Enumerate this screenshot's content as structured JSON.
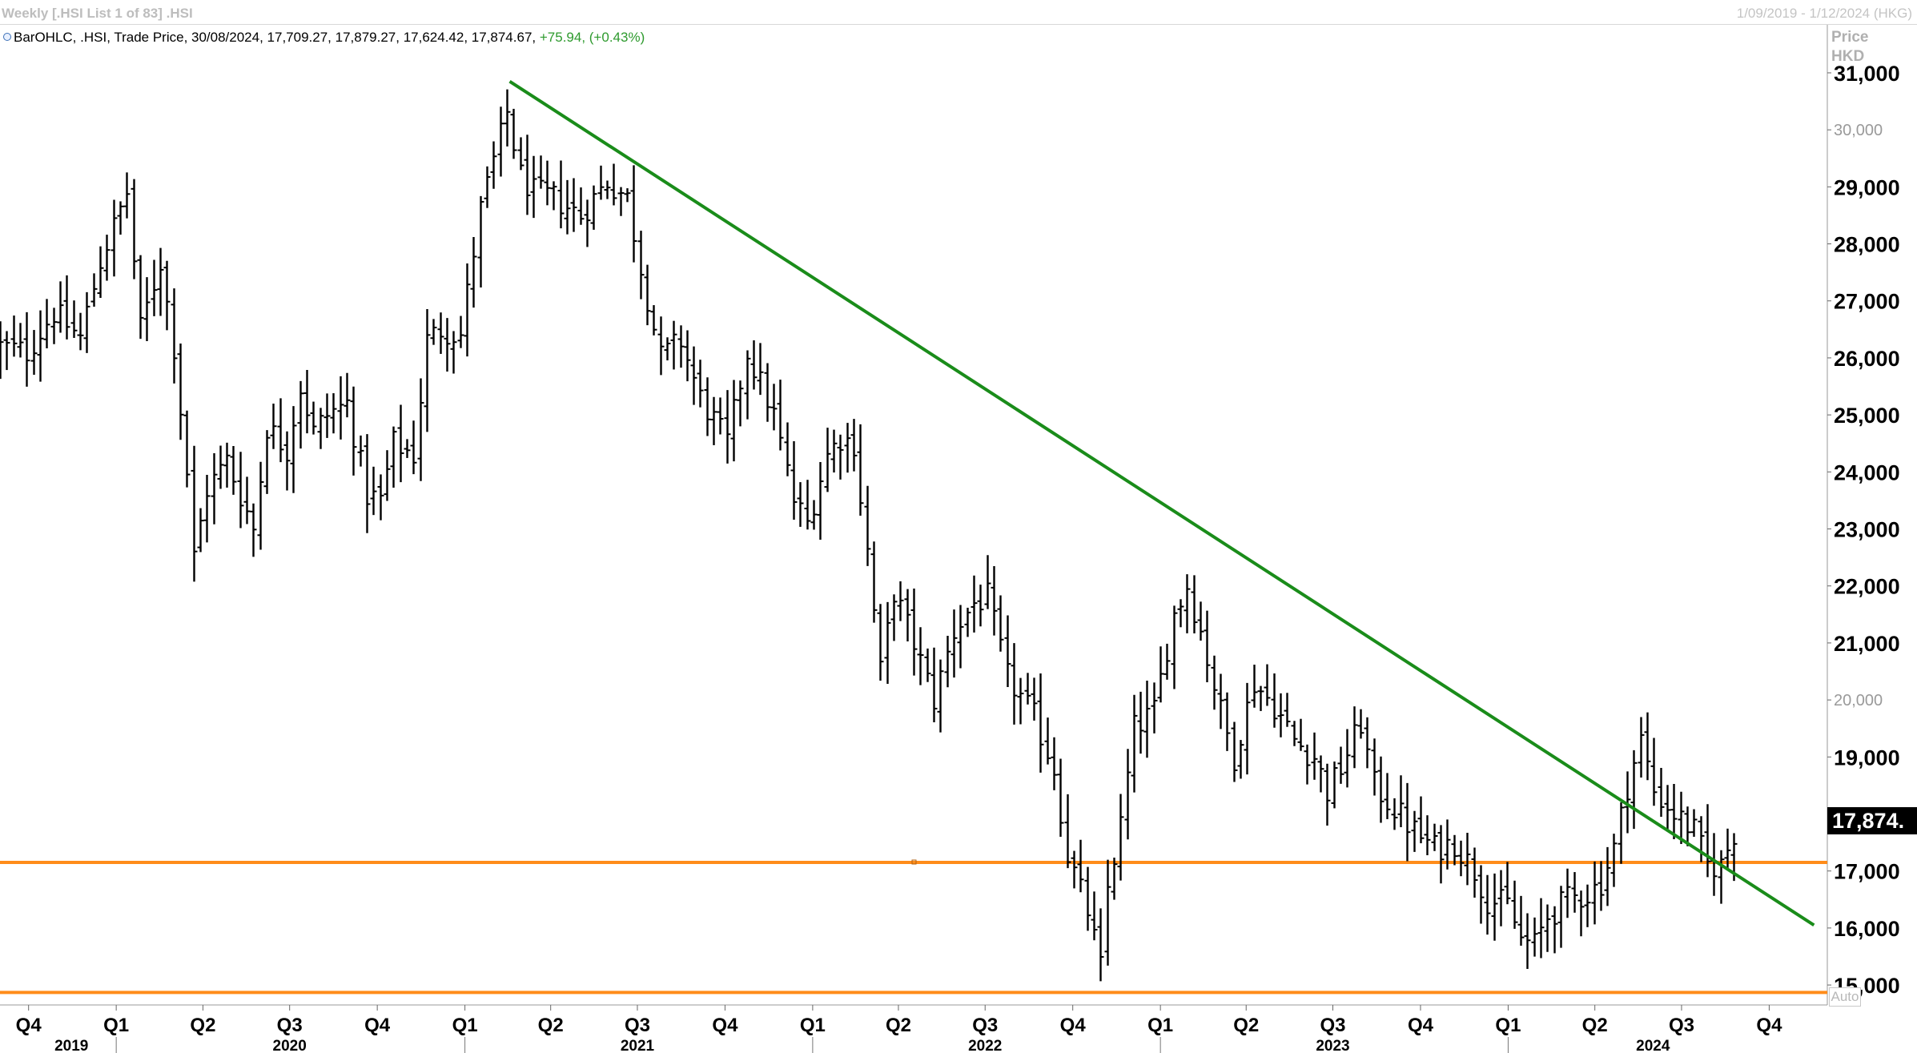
{
  "header": {
    "title": "Weekly [.HSI List 1 of 83] .HSI",
    "date_range": "1/09/2019 - 1/12/2024 (HKG)"
  },
  "legend": {
    "text": "BarOHLC, .HSI, Trade Price, 30/08/2024, 17,709.27, 17,879.27, 17,624.42, 17,874.67,",
    "change": "+75.94, (+0.43%)"
  },
  "price_axis": {
    "title_1": "Price",
    "title_2": "HKD",
    "last_value": "17,874.",
    "auto_label": "Auto"
  },
  "colors": {
    "trendline": "#1a8c1a",
    "support": "#ff8c1a",
    "bars": "#000000",
    "change_text": "#2e9a2e"
  },
  "chart_data": {
    "type": "ohlc",
    "title": "",
    "xlabel": "",
    "ylabel": "Price HKD",
    "ylim": [
      14650,
      31800
    ],
    "xlim": [
      "2019-09-01",
      "2024-12-01"
    ],
    "grid": false,
    "y_ticks": [
      {
        "label": "31,000",
        "v": 31000,
        "major": true
      },
      {
        "label": "30,000",
        "v": 30000,
        "major": false
      },
      {
        "label": "29,000",
        "v": 29000,
        "major": true
      },
      {
        "label": "28,000",
        "v": 28000,
        "major": true
      },
      {
        "label": "27,000",
        "v": 27000,
        "major": true
      },
      {
        "label": "26,000",
        "v": 26000,
        "major": true
      },
      {
        "label": "25,000",
        "v": 25000,
        "major": true
      },
      {
        "label": "24,000",
        "v": 24000,
        "major": true
      },
      {
        "label": "23,000",
        "v": 23000,
        "major": true
      },
      {
        "label": "22,000",
        "v": 22000,
        "major": true
      },
      {
        "label": "21,000",
        "v": 21000,
        "major": true
      },
      {
        "label": "20,000",
        "v": 20000,
        "major": false
      },
      {
        "label": "19,000",
        "v": 19000,
        "major": true
      },
      {
        "label": "17,000",
        "v": 17000,
        "major": true
      },
      {
        "label": "16,000",
        "v": 16000,
        "major": true
      },
      {
        "label": "15,000",
        "v": 15000,
        "major": true
      }
    ],
    "quarter_ticks": [
      {
        "label": "Q4",
        "date": "2019-10-01"
      },
      {
        "label": "Q1",
        "date": "2020-01-01"
      },
      {
        "label": "Q2",
        "date": "2020-04-01"
      },
      {
        "label": "Q3",
        "date": "2020-07-01"
      },
      {
        "label": "Q4",
        "date": "2020-10-01"
      },
      {
        "label": "Q1",
        "date": "2021-01-01"
      },
      {
        "label": "Q2",
        "date": "2021-04-01"
      },
      {
        "label": "Q3",
        "date": "2021-07-01"
      },
      {
        "label": "Q4",
        "date": "2021-10-01"
      },
      {
        "label": "Q1",
        "date": "2022-01-01"
      },
      {
        "label": "Q2",
        "date": "2022-04-01"
      },
      {
        "label": "Q3",
        "date": "2022-07-01"
      },
      {
        "label": "Q4",
        "date": "2022-10-01"
      },
      {
        "label": "Q1",
        "date": "2023-01-01"
      },
      {
        "label": "Q2",
        "date": "2023-04-01"
      },
      {
        "label": "Q3",
        "date": "2023-07-01"
      },
      {
        "label": "Q4",
        "date": "2023-10-01"
      },
      {
        "label": "Q1",
        "date": "2024-01-01"
      },
      {
        "label": "Q2",
        "date": "2024-04-01"
      },
      {
        "label": "Q3",
        "date": "2024-07-01"
      },
      {
        "label": "Q4",
        "date": "2024-10-01"
      }
    ],
    "year_ticks": [
      {
        "label": "2019",
        "date": "2019-11-15"
      },
      {
        "label": "2020",
        "date": "2020-07-01"
      },
      {
        "label": "2021",
        "date": "2021-07-01"
      },
      {
        "label": "2022",
        "date": "2022-07-01"
      },
      {
        "label": "2023",
        "date": "2023-07-01"
      },
      {
        "label": "2024",
        "date": "2024-06-01"
      }
    ],
    "year_separators": [
      "2020-01-01",
      "2021-01-01",
      "2022-01-01",
      "2023-01-01",
      "2024-01-01"
    ],
    "anchors": [
      [
        "2019-09-01",
        26200
      ],
      [
        "2019-09-29",
        26100
      ],
      [
        "2019-10-27",
        26800
      ],
      [
        "2019-11-24",
        26350
      ],
      [
        "2019-12-15",
        27700
      ],
      [
        "2020-01-12",
        28900
      ],
      [
        "2020-01-26",
        26500
      ],
      [
        "2020-02-16",
        27700
      ],
      [
        "2020-03-01",
        26200
      ],
      [
        "2020-03-15",
        24000
      ],
      [
        "2020-03-22",
        22500
      ],
      [
        "2020-04-05",
        23700
      ],
      [
        "2020-04-26",
        24200
      ],
      [
        "2020-05-24",
        23000
      ],
      [
        "2020-06-07",
        24800
      ],
      [
        "2020-06-28",
        24400
      ],
      [
        "2020-07-12",
        25500
      ],
      [
        "2020-07-26",
        24700
      ],
      [
        "2020-08-09",
        25000
      ],
      [
        "2020-08-30",
        25200
      ],
      [
        "2020-09-20",
        23600
      ],
      [
        "2020-10-04",
        23500
      ],
      [
        "2020-10-18",
        24500
      ],
      [
        "2020-11-08",
        24300
      ],
      [
        "2020-11-22",
        26300
      ],
      [
        "2020-12-06",
        26500
      ],
      [
        "2020-12-27",
        26400
      ],
      [
        "2021-01-17",
        28600
      ],
      [
        "2021-02-14",
        30300
      ],
      [
        "2021-02-28",
        29200
      ],
      [
        "2021-03-14",
        28900
      ],
      [
        "2021-04-04",
        28800
      ],
      [
        "2021-05-02",
        28500
      ],
      [
        "2021-05-30",
        29100
      ],
      [
        "2021-06-20",
        28800
      ],
      [
        "2021-07-04",
        27600
      ],
      [
        "2021-07-25",
        26000
      ],
      [
        "2021-08-15",
        26300
      ],
      [
        "2021-09-05",
        25300
      ],
      [
        "2021-10-03",
        24500
      ],
      [
        "2021-10-24",
        26100
      ],
      [
        "2021-11-21",
        25000
      ],
      [
        "2021-12-12",
        23500
      ],
      [
        "2021-12-26",
        23100
      ],
      [
        "2022-01-16",
        24300
      ],
      [
        "2022-01-30",
        24600
      ],
      [
        "2022-02-13",
        24500
      ],
      [
        "2022-02-27",
        22600
      ],
      [
        "2022-03-13",
        20500
      ],
      [
        "2022-03-27",
        21900
      ],
      [
        "2022-04-17",
        21000
      ],
      [
        "2022-05-08",
        20000
      ],
      [
        "2022-05-29",
        21200
      ],
      [
        "2022-06-19",
        21700
      ],
      [
        "2022-07-03",
        21800
      ],
      [
        "2022-07-24",
        20400
      ],
      [
        "2022-08-21",
        19700
      ],
      [
        "2022-09-11",
        18800
      ],
      [
        "2022-09-25",
        17300
      ],
      [
        "2022-10-16",
        16300
      ],
      [
        "2022-10-30",
        15300
      ],
      [
        "2022-11-06",
        16700
      ],
      [
        "2022-11-20",
        17800
      ],
      [
        "2022-12-04",
        19500
      ],
      [
        "2022-12-25",
        19800
      ],
      [
        "2023-01-15",
        21500
      ],
      [
        "2023-01-29",
        22000
      ],
      [
        "2023-02-12",
        21200
      ],
      [
        "2023-03-05",
        19800
      ],
      [
        "2023-03-19",
        19000
      ],
      [
        "2023-04-09",
        20300
      ],
      [
        "2023-04-30",
        19900
      ],
      [
        "2023-05-21",
        19300
      ],
      [
        "2023-06-11",
        19000
      ],
      [
        "2023-06-25",
        18400
      ],
      [
        "2023-07-09",
        18800
      ],
      [
        "2023-07-30",
        19600
      ],
      [
        "2023-08-13",
        18500
      ],
      [
        "2023-09-03",
        18100
      ],
      [
        "2023-09-24",
        17700
      ],
      [
        "2023-10-15",
        17400
      ],
      [
        "2023-11-05",
        17500
      ],
      [
        "2023-11-26",
        17000
      ],
      [
        "2023-12-10",
        16500
      ],
      [
        "2023-12-31",
        16400
      ],
      [
        "2024-01-14",
        15800
      ],
      [
        "2024-01-28",
        15700
      ],
      [
        "2024-02-11",
        16200
      ],
      [
        "2024-03-03",
        16500
      ],
      [
        "2024-03-24",
        16600
      ],
      [
        "2024-04-07",
        16800
      ],
      [
        "2024-04-21",
        17400
      ],
      [
        "2024-05-05",
        18500
      ],
      [
        "2024-05-19",
        19300
      ],
      [
        "2024-06-02",
        18400
      ],
      [
        "2024-06-23",
        18000
      ],
      [
        "2024-07-14",
        17700
      ],
      [
        "2024-07-28",
        17100
      ],
      [
        "2024-08-11",
        17100
      ],
      [
        "2024-08-30",
        17875
      ]
    ],
    "trendline": {
      "from": [
        "2021-02-17",
        30850
      ],
      "to": [
        "2024-11-17",
        16050
      ]
    },
    "support_lines": [
      {
        "value": 17150
      },
      {
        "value": 14870
      }
    ],
    "last_close": 17874.67
  }
}
